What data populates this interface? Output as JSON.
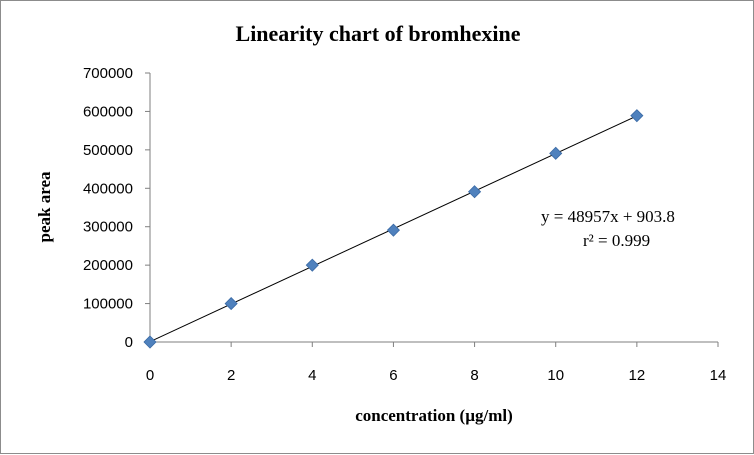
{
  "chart_data": {
    "type": "scatter",
    "title": "Linearity chart of bromhexine",
    "xlabel": "concentration (µg/ml)",
    "ylabel": "peak area",
    "xlim": [
      0,
      14
    ],
    "ylim": [
      0,
      700000
    ],
    "x_ticks": [
      0,
      2,
      4,
      6,
      8,
      10,
      12,
      14
    ],
    "y_ticks": [
      0,
      100000,
      200000,
      300000,
      400000,
      500000,
      600000,
      700000
    ],
    "x_tick_labels": [
      "0",
      "2",
      "4",
      "6",
      "8",
      "10",
      "12",
      "14"
    ],
    "y_tick_labels": [
      "0",
      "100000",
      "200000",
      "300000",
      "400000",
      "500000",
      "600000",
      "700000"
    ],
    "series": [
      {
        "x": [
          0,
          2,
          4,
          6,
          8,
          10,
          12
        ],
        "y": [
          0,
          100000,
          200000,
          291000,
          391000,
          491000,
          589000
        ],
        "marker": "diamond",
        "color": "#4f81bd"
      }
    ],
    "trendline": {
      "slope": 48957,
      "intercept": 903.8,
      "x_range": [
        0,
        12
      ],
      "color": "#000000"
    },
    "annotations": {
      "equation": "y = 48957x + 903.8",
      "r2": "r² = 0.999"
    },
    "grid": false,
    "legend": "none"
  }
}
